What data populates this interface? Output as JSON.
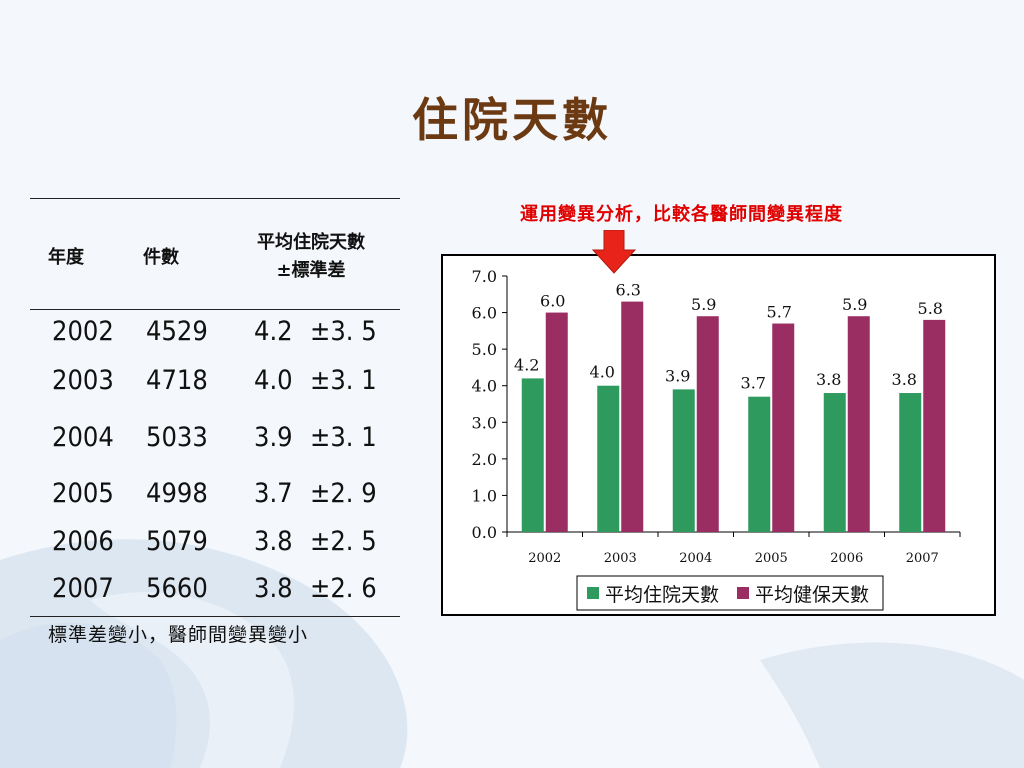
{
  "title": "住院天數",
  "table": {
    "headers": {
      "year": "年度",
      "count": "件數",
      "avg_line1": "平均住院天數",
      "avg_line2": "±標準差"
    },
    "rows": [
      {
        "year": "2002",
        "count": "4529",
        "avg": "4.2",
        "sd": "±3. 5"
      },
      {
        "year": "2003",
        "count": "4718",
        "avg": "4.0",
        "sd": "±3. 1"
      },
      {
        "year": "2004",
        "count": "5033",
        "avg": "3.9",
        "sd": "±3. 1"
      },
      {
        "year": "2005",
        "count": "4998",
        "avg": "3.7",
        "sd": "±2. 9"
      },
      {
        "year": "2006",
        "count": "5079",
        "avg": "3.8",
        "sd": "±2. 5"
      },
      {
        "year": "2007",
        "count": "5660",
        "avg": "3.8",
        "sd": "±2. 6"
      }
    ]
  },
  "note": "標準差變小，醫師間變異變小",
  "annotation": "運用變異分析，比較各醫師間變異程度",
  "colors": {
    "title": "#6b3a12",
    "annotation": "#e00000",
    "arrow": "#e8241a",
    "series1": "#2e9a5e",
    "series2": "#9a2d62"
  },
  "chart_data": {
    "type": "bar",
    "categories": [
      "2002",
      "2003",
      "2004",
      "2005",
      "2006",
      "2007"
    ],
    "series": [
      {
        "name": "平均住院天數",
        "values": [
          4.2,
          4.0,
          3.9,
          3.7,
          3.8,
          3.8
        ],
        "labels": [
          "4.2",
          "4.0",
          "3.9",
          "3.7",
          "3.8",
          "3.8"
        ]
      },
      {
        "name": "平均健保天數",
        "values": [
          6.0,
          6.3,
          5.9,
          5.7,
          5.9,
          5.8
        ],
        "labels": [
          "6.0",
          "6.3",
          "5.9",
          "5.7",
          "5.9",
          "5.8"
        ]
      }
    ],
    "ylim": [
      0,
      7
    ],
    "yticks": [
      "0.0",
      "1.0",
      "2.0",
      "3.0",
      "4.0",
      "5.0",
      "6.0",
      "7.0"
    ],
    "grid": false,
    "legend": "bottom",
    "title": "",
    "xlabel": "",
    "ylabel": ""
  }
}
